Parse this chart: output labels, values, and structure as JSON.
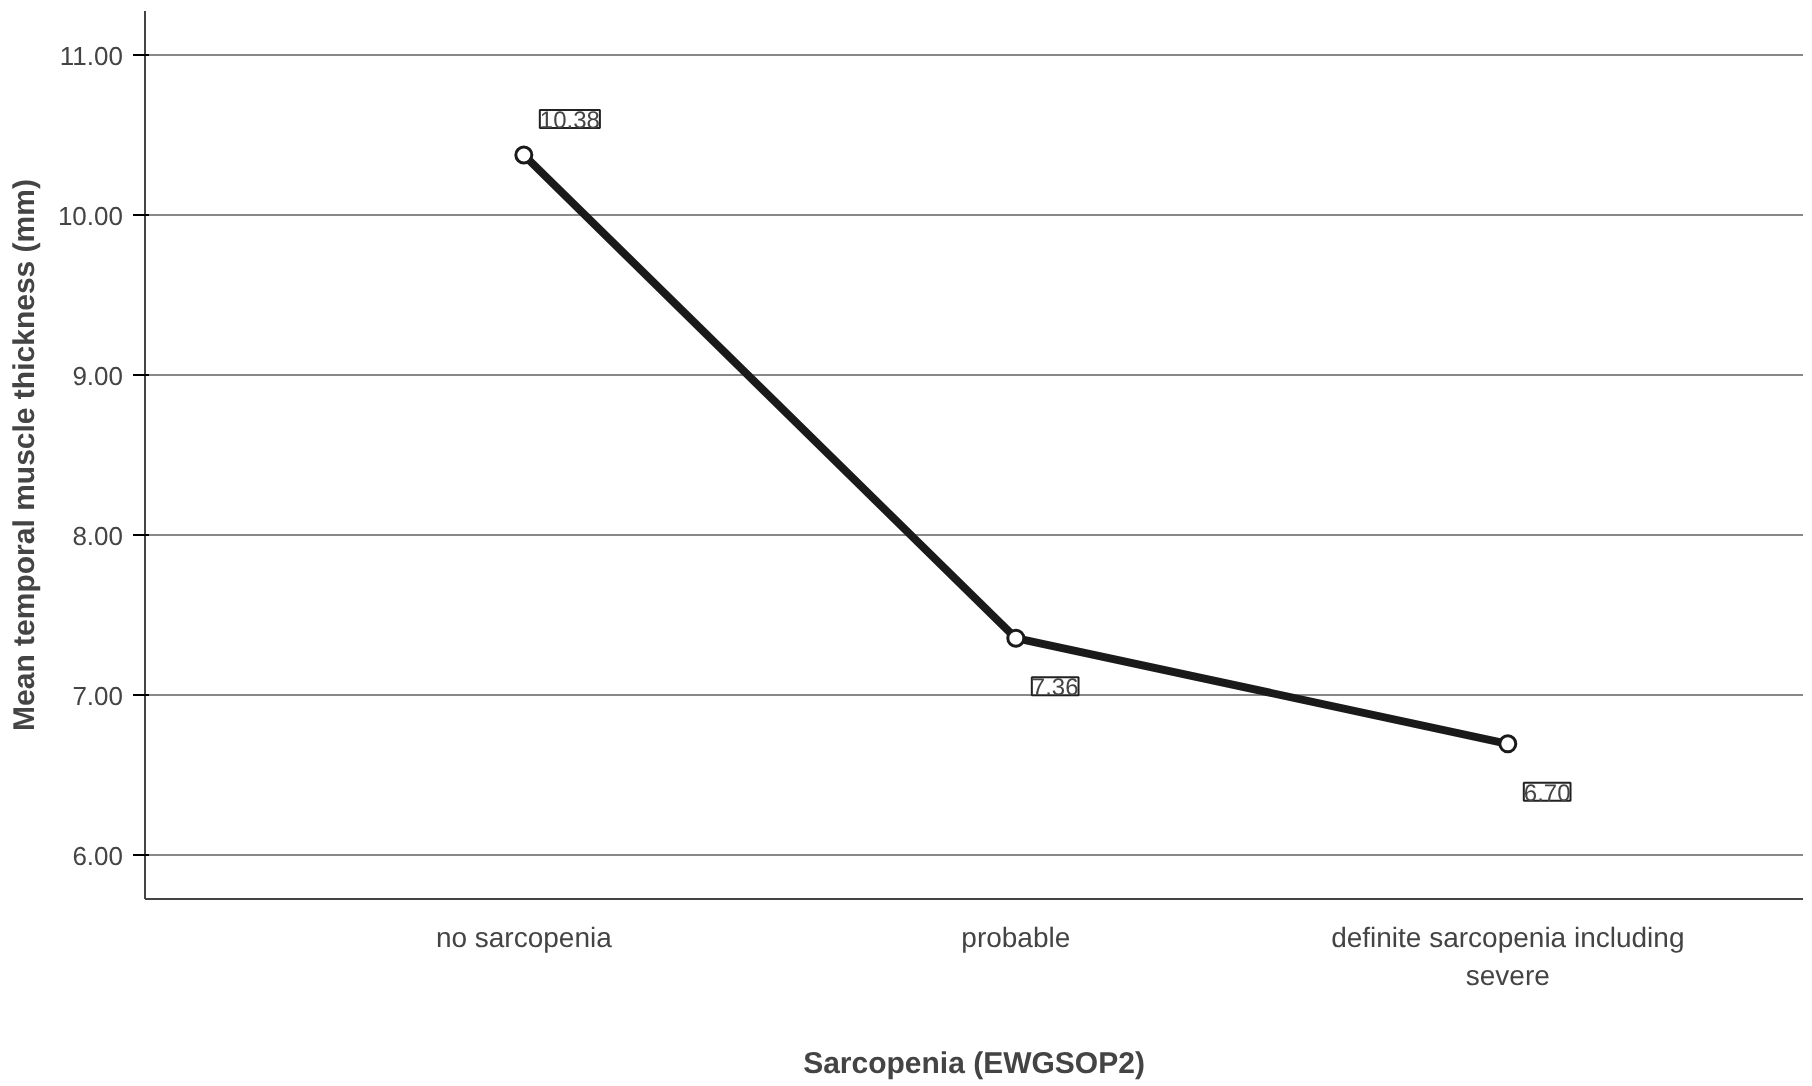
{
  "chart_data": {
    "type": "line",
    "xlabel": "Sarcopenia (EWGSOP2)",
    "ylabel": "Mean temporal muscle thickness (mm)",
    "categories": [
      "no sarcopenia",
      "probable",
      "definite sarcopenia including severe"
    ],
    "series": [
      {
        "color": "#1a1a1a",
        "values": [
          10.38,
          7.36,
          6.7
        ]
      }
    ],
    "value_labels": [
      "10.38",
      "7.36",
      "6.70"
    ],
    "ylim": [
      5.73,
      11.28
    ],
    "yticks": [
      {
        "value": 6,
        "label": "6.00"
      },
      {
        "value": 7,
        "label": "7.00"
      },
      {
        "value": 8,
        "label": "8.00"
      },
      {
        "value": 9,
        "label": "9.00"
      },
      {
        "value": 10,
        "label": "10.00"
      },
      {
        "value": 11,
        "label": "11.00"
      }
    ],
    "grid": "y",
    "marker": "circle",
    "line_style": "solid"
  }
}
